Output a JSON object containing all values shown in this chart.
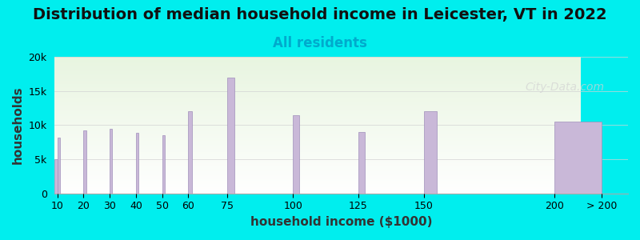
{
  "title": "Distribution of median household income in Leicester, VT in 2022",
  "subtitle": "All residents",
  "xlabel": "household income ($1000)",
  "ylabel": "households",
  "background_color": "#00EEEE",
  "plot_bg_gradient_top": "#e8f5e0",
  "plot_bg_gradient_bottom": "#ffffff",
  "bar_color": "#c9b8d8",
  "bar_edge_color": "#a090bb",
  "watermark": "City-Data.com",
  "categories": [
    "10",
    "20",
    "30",
    "40",
    "50",
    "60",
    "75",
    "100",
    "125",
    "150",
    "200",
    "> 200"
  ],
  "values": [
    5000,
    8200,
    9200,
    9500,
    8900,
    8500,
    12000,
    17000,
    11500,
    9000,
    12000,
    10500
  ],
  "bar_widths": [
    1,
    1,
    1,
    1,
    1,
    1,
    1.5,
    2.5,
    2.5,
    2.5,
    5,
    5
  ],
  "bar_lefts": [
    9,
    10,
    20,
    30,
    40,
    50,
    60,
    75,
    100,
    125,
    150,
    200
  ],
  "ylim": [
    0,
    20000
  ],
  "yticks": [
    0,
    5000,
    10000,
    15000,
    20000
  ],
  "ytick_labels": [
    "0",
    "5k",
    "10k",
    "15k",
    "20k"
  ],
  "title_fontsize": 14,
  "subtitle_fontsize": 12,
  "axis_label_fontsize": 11,
  "tick_fontsize": 9
}
